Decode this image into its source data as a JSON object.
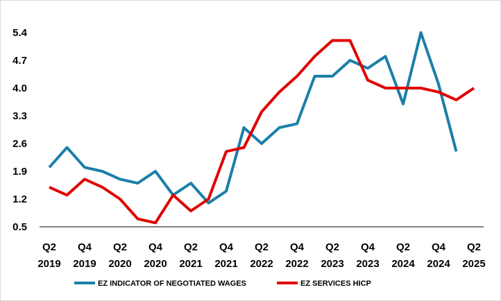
{
  "chart_data": {
    "type": "line",
    "title": "",
    "xlabel": "",
    "ylabel": "",
    "ylim": [
      0.5,
      5.4
    ],
    "yticks": [
      "5.4",
      "4.7",
      "4.0",
      "3.3",
      "2.6",
      "1.9",
      "1.2",
      "0.5"
    ],
    "x": [
      "Q2 2019",
      "Q3 2019",
      "Q4 2019",
      "Q1 2020",
      "Q2 2020",
      "Q3 2020",
      "Q4 2020",
      "Q1 2021",
      "Q2 2021",
      "Q3 2021",
      "Q4 2021",
      "Q1 2022",
      "Q2 2022",
      "Q3 2022",
      "Q4 2022",
      "Q1 2023",
      "Q2 2023",
      "Q3 2023",
      "Q4 2023",
      "Q1 2024",
      "Q2 2024",
      "Q3 2024",
      "Q4 2024",
      "Q1 2025",
      "Q2 2025"
    ],
    "xtick_labels": [
      {
        "q": "Q2",
        "y": "2019"
      },
      {
        "q": "Q4",
        "y": "2019"
      },
      {
        "q": "Q2",
        "y": "2020"
      },
      {
        "q": "Q4",
        "y": "2020"
      },
      {
        "q": "Q2",
        "y": "2021"
      },
      {
        "q": "Q4",
        "y": "2021"
      },
      {
        "q": "Q2",
        "y": "2022"
      },
      {
        "q": "Q4",
        "y": "2022"
      },
      {
        "q": "Q2",
        "y": "2023"
      },
      {
        "q": "Q4",
        "y": "2023"
      },
      {
        "q": "Q2",
        "y": "2024"
      },
      {
        "q": "Q4",
        "y": "2024"
      },
      {
        "q": "Q2",
        "y": "2025"
      }
    ],
    "grid": false,
    "legend": "bottom",
    "series": [
      {
        "name": "EZ INDICATOR OF NEGOTIATED WAGES",
        "color": "#1a7fa8",
        "values": [
          2.0,
          2.5,
          2.0,
          1.9,
          1.7,
          1.6,
          1.9,
          1.3,
          1.6,
          1.1,
          1.4,
          3.0,
          2.6,
          3.0,
          3.1,
          4.3,
          4.3,
          4.7,
          4.5,
          4.8,
          3.6,
          5.4,
          4.1,
          2.4,
          null
        ]
      },
      {
        "name": "EZ SERVICES HICP",
        "color": "#e00000",
        "values": [
          1.5,
          1.3,
          1.7,
          1.5,
          1.2,
          0.7,
          0.6,
          1.3,
          0.9,
          1.2,
          2.4,
          2.5,
          3.4,
          3.9,
          4.3,
          4.8,
          5.2,
          5.2,
          4.2,
          4.0,
          4.0,
          4.0,
          3.9,
          3.7,
          4.0
        ]
      }
    ]
  }
}
